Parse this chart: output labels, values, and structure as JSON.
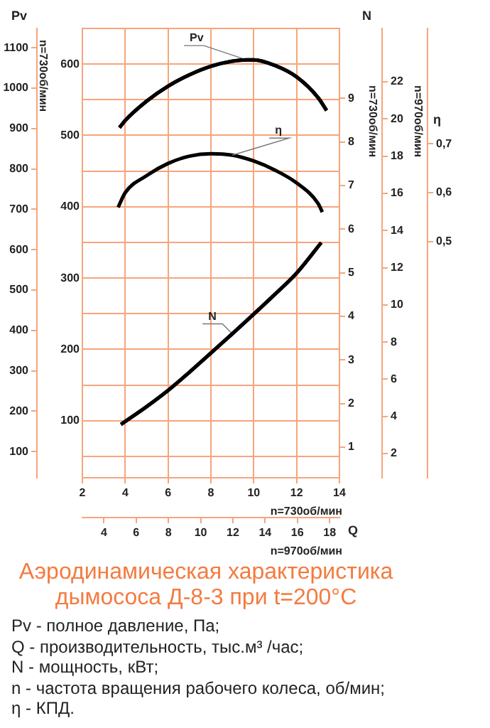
{
  "chart_data": [
    {
      "type": "line",
      "title": "Аэродинамическая характеристика дымососа Д-8-3 при t=200°C",
      "xlabel": "Q",
      "ylabel": "Pv",
      "y2label": "N",
      "y3label": "η",
      "xlim": [
        2,
        14
      ],
      "xticks": [
        2,
        4,
        6,
        8,
        10,
        12,
        14
      ],
      "ylim": [
        20,
        650
      ],
      "yticks": [
        {
          "value": 50,
          "label": null
        },
        100,
        {
          "value": 150,
          "label": null
        },
        200,
        {
          "value": 250,
          "label": null
        },
        300,
        {
          "value": 350,
          "label": null
        },
        400,
        {
          "value": 450,
          "label": null
        },
        500,
        {
          "value": 550,
          "label": null
        },
        600
      ],
      "y2lim": [
        0.3,
        10.6
      ],
      "y2ticks": [
        1,
        2,
        3,
        4,
        5,
        6,
        7,
        8,
        9
      ],
      "y3lim": [
        0.015,
        0.937
      ],
      "y3ticks": [
        {
          "value": 0.5,
          "label": "0,5"
        },
        {
          "value": 0.6,
          "label": "0,6"
        },
        {
          "value": 0.7,
          "label": "0,7"
        }
      ],
      "grid": true,
      "series": [
        {
          "name": "Pv",
          "color": "#000000",
          "x": [
            3.73,
            4,
            5,
            6,
            7,
            8,
            9,
            9.66,
            10,
            11,
            12,
            13,
            13.4
          ],
          "values": [
            511,
            521,
            548,
            569,
            585,
            597,
            604,
            606,
            606,
            598,
            582,
            553,
            535
          ]
        },
        {
          "name": "η",
          "color": "#000000",
          "axis": "y3",
          "x": [
            3.67,
            4,
            5,
            6,
            7,
            8,
            9,
            10,
            11,
            12,
            13,
            13.2
          ],
          "values": [
            0.57,
            0.6,
            0.635,
            0.66,
            0.675,
            0.68,
            0.677,
            0.665,
            0.646,
            0.62,
            0.578,
            0.56
          ]
        },
        {
          "name": "N",
          "color": "#000000",
          "axis": "y2",
          "x": [
            3.8,
            4,
            5,
            6,
            7,
            8,
            9,
            10,
            11,
            12,
            13.15
          ],
          "values": [
            1.52,
            1.59,
            1.93,
            2.3,
            2.72,
            3.16,
            3.6,
            4.05,
            4.51,
            4.99,
            5.69
          ]
        }
      ],
      "annotations": [
        "n=730об/мин",
        "n=730об/мин",
        "n=730об/мин",
        "Pv - полное давление, Па;",
        "Q - производительность, тыс.м³ /час;",
        "N - мощность, кВт;",
        "n - частота вращения рабочего колеса, об/мин;",
        "η - КПД."
      ]
    },
    {
      "type": "line",
      "xlim": [
        2.66,
        18.61
      ],
      "xticks": [
        4,
        6,
        8,
        10,
        12,
        14,
        16,
        18
      ],
      "ylim": [
        35.3,
        1147.9
      ],
      "yticks": [
        100,
        200,
        300,
        400,
        500,
        600,
        700,
        800,
        900,
        1000,
        1100
      ],
      "y2lim": [
        0.7,
        24.87
      ],
      "y2ticks": [
        2,
        4,
        6,
        8,
        10,
        12,
        14,
        16,
        18,
        20,
        22
      ],
      "series": [
        {
          "color": "#000000",
          "x": [
            4.96,
            5.32,
            6.65,
            7.97,
            9.3,
            10.63,
            11.96,
            12.84,
            13.29,
            14.62,
            15.95,
            17.28,
            17.81
          ],
          "values": [
            902,
            920,
            968,
            1005,
            1033,
            1054,
            1067,
            1070,
            1070,
            1056,
            1028,
            977,
            945
          ]
        },
        {
          "color": "#000000",
          "axis": "y2",
          "x": [
            5.05,
            5.32,
            6.65,
            7.97,
            9.3,
            10.63,
            11.96,
            13.29,
            14.62,
            15.95,
            17.48
          ],
          "values": [
            3.57,
            3.73,
            4.53,
            5.4,
            6.38,
            7.41,
            8.45,
            9.5,
            10.58,
            11.71,
            13.35
          ]
        }
      ],
      "annotations": [
        "n=970об/мин",
        "n=970об/мин"
      ]
    }
  ]
}
